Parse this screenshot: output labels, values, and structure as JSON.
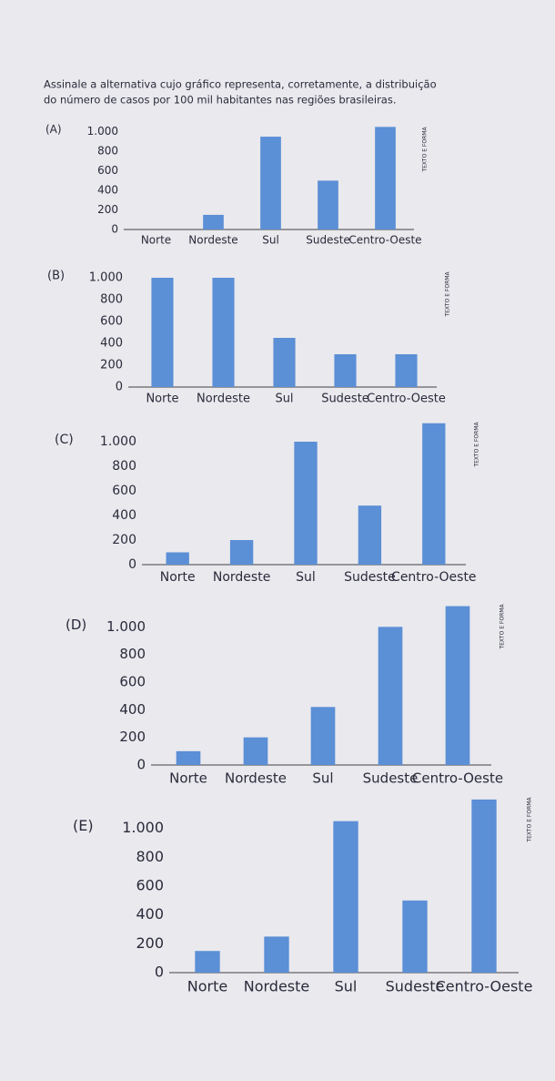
{
  "question": [
    "Assinale a alternativa cujo gráfico representa, corretamente, a distribuição",
    "do número de casos por 100 mil habitantes nas regiões brasileiras."
  ],
  "chart_data": [
    {
      "type": "bar",
      "label": "(A)",
      "side_text": "TEXTO E FORMA",
      "categories": [
        "Norte",
        "Nordeste",
        "Sul",
        "Sudeste",
        "Centro-Oeste"
      ],
      "values": [
        0,
        150,
        950,
        500,
        1050
      ],
      "color": "#5b8fd6",
      "ylim": [
        0,
        1100
      ],
      "yticks": [
        0,
        200,
        400,
        600,
        800,
        {
          "value": 1000,
          "label": "1.000"
        }
      ]
    },
    {
      "type": "bar",
      "label": "(B)",
      "side_text": "TEXTO E FORMA",
      "categories": [
        "Norte",
        "Nordeste",
        "Sul",
        "Sudeste",
        "Centro-Oeste"
      ],
      "values": [
        1000,
        1000,
        450,
        300,
        300
      ],
      "color": "#5b8fd6",
      "ylim": [
        0,
        1100
      ],
      "yticks": [
        0,
        200,
        400,
        600,
        800,
        {
          "value": 1000,
          "label": "1.000"
        }
      ]
    },
    {
      "type": "bar",
      "label": "(C)",
      "side_text": "TEXTO E FORMA",
      "categories": [
        "Norte",
        "Nordeste",
        "Sul",
        "Sudeste",
        "Centro-Oeste"
      ],
      "values": [
        100,
        200,
        1000,
        480,
        1150
      ],
      "color": "#5b8fd6",
      "ylim": [
        0,
        1200
      ],
      "yticks": [
        0,
        200,
        400,
        600,
        800,
        {
          "value": 1000,
          "label": "1.000"
        }
      ]
    },
    {
      "type": "bar",
      "label": "(D)",
      "side_text": "TEXTO E FORMA",
      "categories": [
        "Norte",
        "Nordeste",
        "Sul",
        "Sudeste",
        "Centro-Oeste"
      ],
      "values": [
        100,
        200,
        420,
        1000,
        1150
      ],
      "color": "#5b8fd6",
      "ylim": [
        0,
        1200
      ],
      "yticks": [
        0,
        200,
        400,
        600,
        800,
        {
          "value": 1000,
          "label": "1.000"
        }
      ]
    },
    {
      "type": "bar",
      "label": "(E)",
      "side_text": "TEXTO E FORMA",
      "categories": [
        "Norte",
        "Nordeste",
        "Sul",
        "Sudeste",
        "Centro-Oeste"
      ],
      "values": [
        150,
        250,
        1050,
        500,
        1200
      ],
      "color": "#5b8fd6",
      "ylim": [
        0,
        1250
      ],
      "yticks": [
        0,
        200,
        400,
        600,
        800,
        {
          "value": 1000,
          "label": "1.000"
        }
      ]
    }
  ]
}
